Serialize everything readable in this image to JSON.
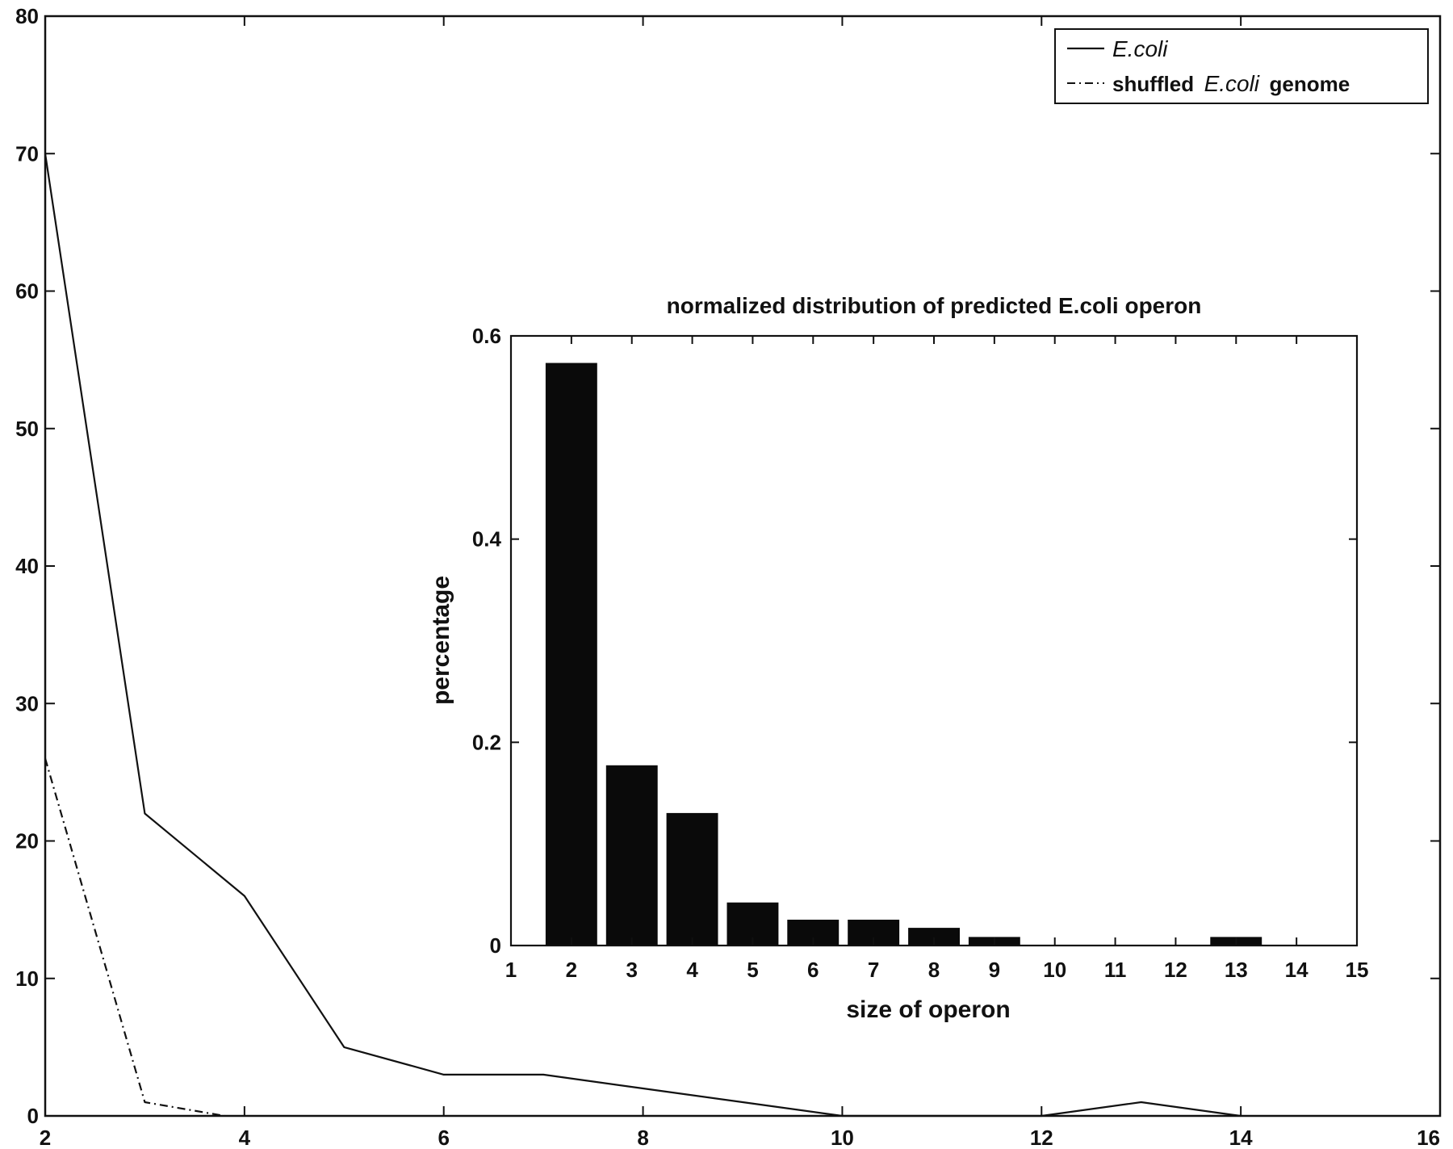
{
  "chart_data": [
    {
      "type": "line",
      "xlim": [
        2,
        16
      ],
      "ylim": [
        0,
        80
      ],
      "xticks": [
        2,
        4,
        6,
        8,
        10,
        12,
        14,
        16
      ],
      "yticks": [
        0,
        10,
        20,
        30,
        40,
        50,
        60,
        70,
        80
      ],
      "xtick_labels": [
        "2",
        "4",
        "6",
        "8",
        "10",
        "12",
        "14",
        "16"
      ],
      "ytick_labels": [
        "0",
        "10",
        "20",
        "30",
        "40",
        "50",
        "60",
        "70",
        "80"
      ],
      "title": "",
      "xlabel": "",
      "ylabel": "",
      "grid": false,
      "legend_placement": "top-right",
      "legend": {
        "entry1": {
          "text": "E.coli"
        },
        "entry2": {
          "prefix": "shuffled",
          "italic": "E.coli",
          "suffix": "genome"
        }
      },
      "series": [
        {
          "style": "solid",
          "x": [
            2,
            3,
            4,
            5,
            6,
            7,
            8,
            9,
            10,
            11,
            12,
            13,
            14
          ],
          "y": [
            70,
            22,
            16,
            5,
            3,
            3,
            2,
            1,
            0,
            0,
            0,
            1,
            0
          ]
        },
        {
          "style": "dash-dot",
          "x": [
            2,
            3,
            3.8
          ],
          "y": [
            26,
            1,
            0
          ]
        }
      ]
    },
    {
      "type": "bar",
      "title": "normalized distribution of predicted E.coli operon",
      "xlabel": "size of operon",
      "ylabel": "percentage",
      "xlim": [
        1,
        15
      ],
      "ylim": [
        0,
        0.6
      ],
      "yticks": [
        0,
        0.2,
        0.4,
        0.6
      ],
      "ytick_labels": [
        "0",
        "0.2",
        "0.4",
        "0.6"
      ],
      "categories": [
        "1",
        "2",
        "3",
        "4",
        "5",
        "6",
        "7",
        "8",
        "9",
        "10",
        "11",
        "12",
        "13",
        "14",
        "15"
      ],
      "values": [
        0,
        0.573,
        0.177,
        0.13,
        0.042,
        0.025,
        0.025,
        0.017,
        0.008,
        0,
        0,
        0,
        0.008,
        0,
        0
      ]
    }
  ]
}
